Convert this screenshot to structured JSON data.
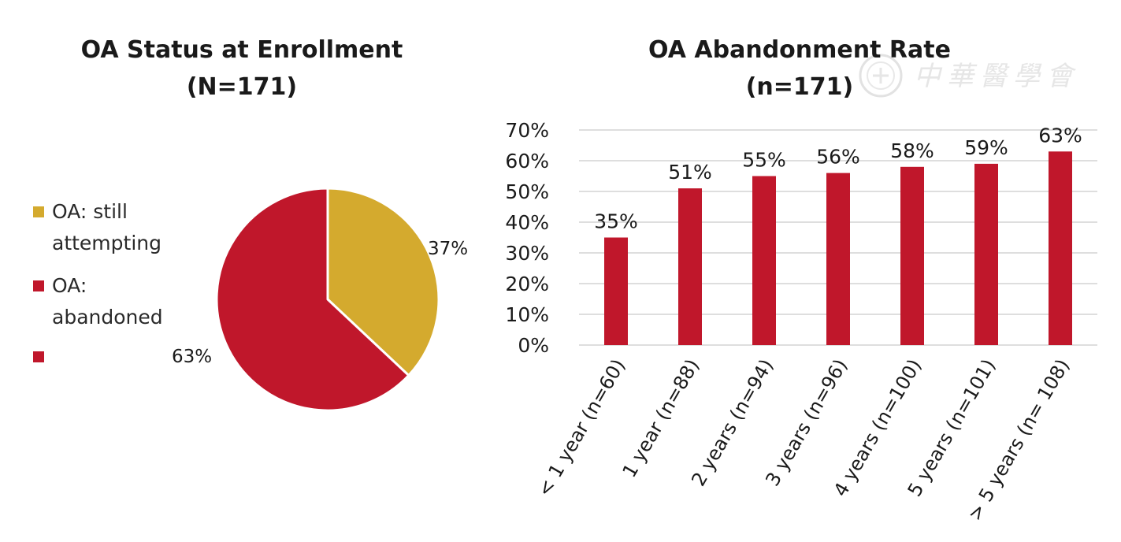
{
  "watermark": {
    "text": "中華醫學會"
  },
  "chart_data": [
    {
      "type": "pie",
      "title": "OA Status at Enrollment",
      "subtitle": "(N=171)",
      "slices": [
        {
          "name": "OA: still attempting",
          "value": 37,
          "label": "37%",
          "color": "#d4aa2e"
        },
        {
          "name": "OA: abandoned",
          "value": 63,
          "label": "63%",
          "color": "#c0172b"
        }
      ],
      "legend": {
        "placement": "left",
        "entries": [
          {
            "lines": [
              "OA: still",
              "attempting"
            ],
            "color": "#d4aa2e"
          },
          {
            "lines": [
              "OA:",
              "abandoned"
            ],
            "color": "#c0172b"
          },
          {
            "lines": [
              ""
            ],
            "color": "#c0172b"
          }
        ]
      }
    },
    {
      "type": "bar",
      "title": "OA Abandonment Rate",
      "subtitle": "(n=171)",
      "categories": [
        "< 1 year (n=60)",
        "1 year (n=88)",
        "2 years (n=94)",
        "3 years (n=96)",
        "4 years (n=100)",
        "5 years (n=101)",
        "> 5 years (n= 108)"
      ],
      "values": [
        35,
        51,
        55,
        56,
        58,
        59,
        63
      ],
      "data_labels": [
        "35%",
        "51%",
        "55%",
        "56%",
        "58%",
        "59%",
        "63%"
      ],
      "ylim": [
        0,
        70
      ],
      "yticks": [
        0,
        10,
        20,
        30,
        40,
        50,
        60,
        70
      ],
      "ytick_labels": [
        "0%",
        "10%",
        "20%",
        "30%",
        "40%",
        "50%",
        "60%",
        "70%"
      ],
      "grid": true,
      "bar_color": "#c0172b"
    }
  ]
}
